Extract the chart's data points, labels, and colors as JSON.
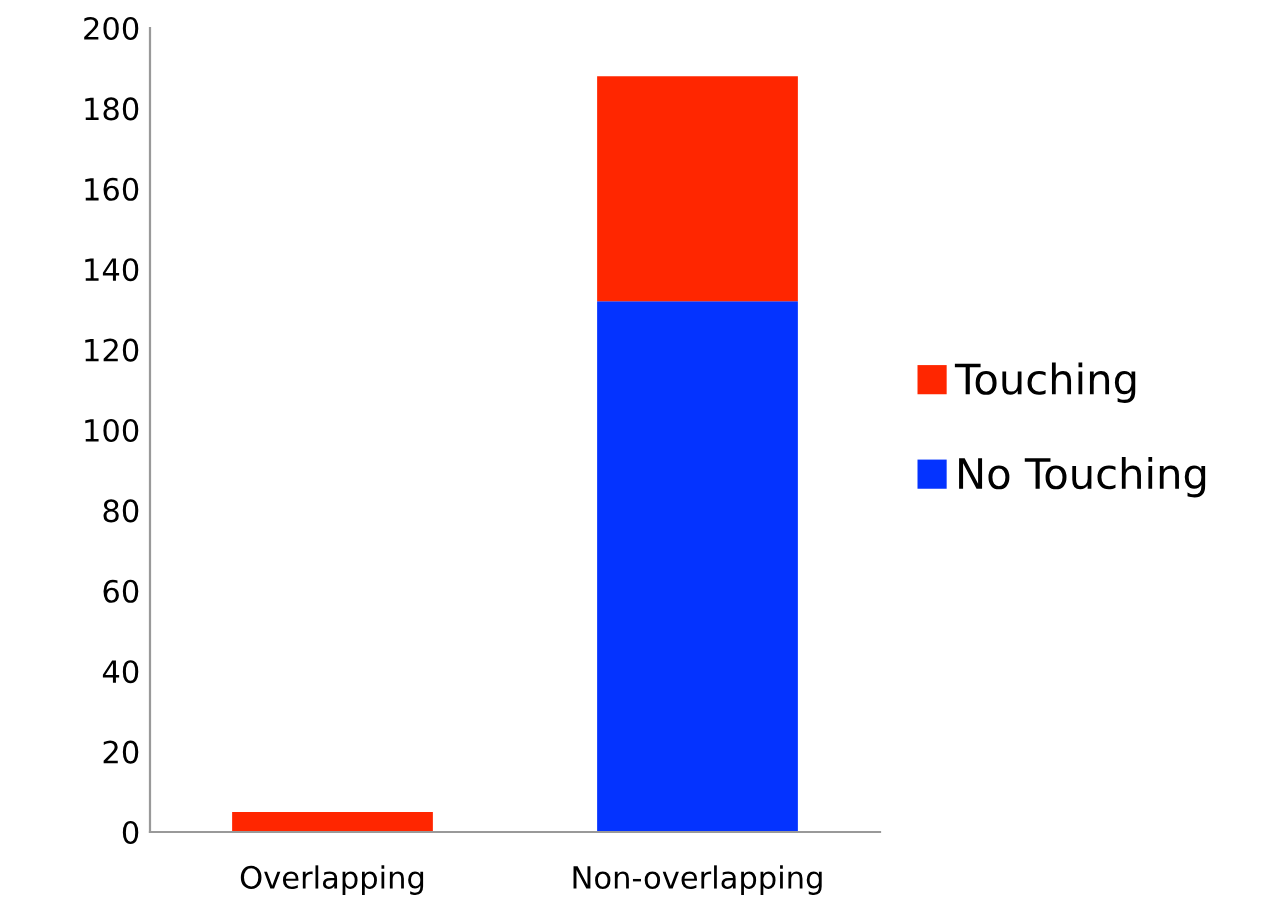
{
  "chart_data": {
    "type": "bar",
    "stacked": true,
    "categories": [
      "Overlapping",
      "Non-overlapping"
    ],
    "series": [
      {
        "name": "No Touching",
        "color": "#0433ff",
        "values": [
          0,
          132
        ]
      },
      {
        "name": "Touching",
        "color": "#ff2600",
        "values": [
          5,
          56
        ]
      }
    ],
    "ylim": [
      0,
      200
    ],
    "yticks": [
      0,
      20,
      40,
      60,
      80,
      100,
      120,
      140,
      160,
      180,
      200
    ],
    "grid": false,
    "legend": "right"
  }
}
